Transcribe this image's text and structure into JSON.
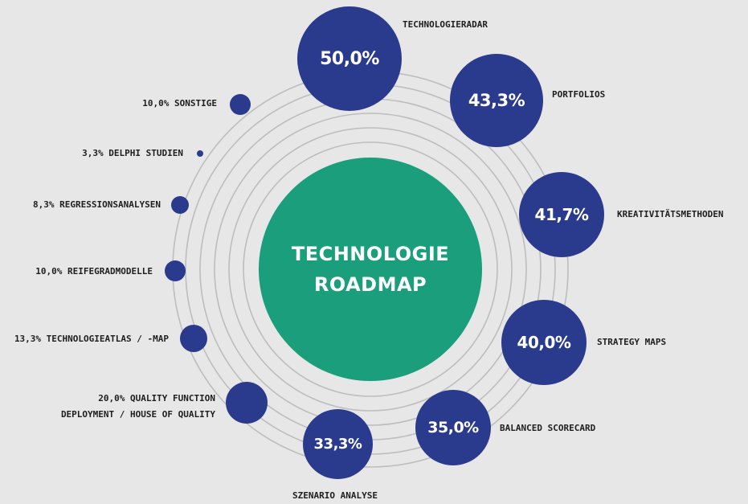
{
  "center": {
    "line1": "TECHNOLOGIE",
    "line2": "ROADMAP"
  },
  "large_items": [
    {
      "value": "50,0%",
      "label": "TECHNOLOGIERADAR"
    },
    {
      "value": "43,3%",
      "label": "PORTFOLIOS"
    },
    {
      "value": "41,7%",
      "label": "KREATIVITÄTSMETHODEN"
    },
    {
      "value": "40,0%",
      "label": "STRATEGY MAPS"
    },
    {
      "value": "35,0%",
      "label": "BALANCED SCORECARD"
    },
    {
      "value": "33,3%",
      "label": "SZENARIO ANALYSE"
    }
  ],
  "small_items": [
    {
      "text": "10,0% SONSTIGE"
    },
    {
      "text": "3,3% DELPHI STUDIEN"
    },
    {
      "text": "8,3% REGRESSIONSANALYSEN"
    },
    {
      "text": "10,0% REIFEGRADMODELLE"
    },
    {
      "text": "13,3% TECHNOLOGIEATLAS / -MAP"
    },
    {
      "text_line1": "20,0% QUALITY FUNCTION",
      "text_line2": "DEPLOYMENT / HOUSE OF QUALITY"
    }
  ],
  "colors": {
    "background": "#e7e7e7",
    "center": "#1a9e7b",
    "bubble": "#2a3a8d",
    "ring": "#b9b9b9"
  }
}
